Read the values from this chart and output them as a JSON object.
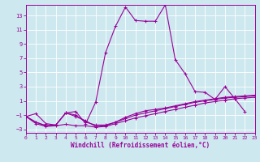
{
  "xlabel": "Windchill (Refroidissement éolien,°C)",
  "bg_color": "#cde8ee",
  "line_color": "#990099",
  "grid_color": "#ffffff",
  "xlim": [
    0,
    23
  ],
  "ylim": [
    -3.5,
    14.5
  ],
  "xticks": [
    0,
    1,
    2,
    3,
    4,
    5,
    6,
    7,
    8,
    9,
    10,
    11,
    12,
    13,
    14,
    15,
    16,
    17,
    18,
    19,
    20,
    21,
    22,
    23
  ],
  "yticks": [
    -3,
    -1,
    1,
    3,
    5,
    7,
    9,
    11,
    13
  ],
  "lines": [
    {
      "x": [
        0,
        1,
        2,
        3,
        4,
        5,
        6,
        7,
        8,
        9,
        10,
        11,
        12,
        13,
        14,
        15,
        16,
        17,
        18,
        19,
        20,
        21,
        22
      ],
      "y": [
        -1.2,
        -0.8,
        -2.2,
        -2.4,
        -0.7,
        -0.5,
        -2.2,
        0.8,
        7.8,
        11.5,
        14.2,
        12.3,
        12.2,
        12.2,
        14.5,
        6.8,
        4.8,
        2.3,
        2.2,
        1.2,
        3.0,
        1.3,
        -0.5
      ]
    },
    {
      "x": [
        0,
        1,
        2,
        3,
        4,
        5,
        6,
        7,
        8,
        9,
        10,
        11,
        12,
        13,
        14,
        15,
        16,
        17,
        18,
        19,
        20,
        21,
        22,
        23
      ],
      "y": [
        -1.2,
        -2.2,
        -2.6,
        -2.5,
        -2.3,
        -2.5,
        -2.5,
        -2.7,
        -2.6,
        -2.2,
        -1.8,
        -1.4,
        -1.1,
        -0.8,
        -0.5,
        -0.2,
        0.1,
        0.4,
        0.7,
        0.9,
        1.1,
        1.3,
        1.4,
        1.5
      ]
    },
    {
      "x": [
        0,
        1,
        2,
        3,
        4,
        5,
        6,
        7,
        8,
        9,
        10,
        11,
        12,
        13,
        14,
        15,
        16,
        17,
        18,
        19,
        20,
        21,
        22,
        23
      ],
      "y": [
        -1.2,
        -2.0,
        -2.5,
        -2.4,
        -0.7,
        -1.2,
        -1.8,
        -2.6,
        -2.5,
        -2.0,
        -1.5,
        -1.0,
        -0.7,
        -0.4,
        -0.1,
        0.2,
        0.5,
        0.8,
        1.0,
        1.2,
        1.4,
        1.5,
        1.6,
        1.7
      ]
    },
    {
      "x": [
        0,
        1,
        2,
        3,
        4,
        5,
        6,
        7,
        8,
        9,
        10,
        11,
        12,
        13,
        14,
        15,
        16,
        17,
        18,
        19,
        20,
        21,
        22,
        23
      ],
      "y": [
        -1.2,
        -2.0,
        -2.5,
        -2.4,
        -0.7,
        -1.0,
        -2.0,
        -2.4,
        -2.4,
        -2.0,
        -1.3,
        -0.8,
        -0.4,
        -0.2,
        0.0,
        0.3,
        0.6,
        0.9,
        1.1,
        1.3,
        1.5,
        1.6,
        1.7,
        1.8
      ]
    }
  ]
}
